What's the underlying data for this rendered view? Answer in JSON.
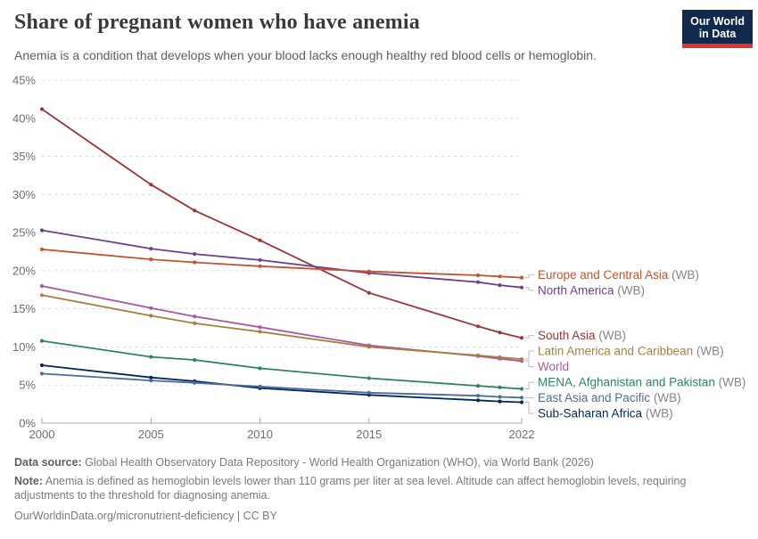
{
  "header": {
    "title": "Share of pregnant women who have anemia",
    "subtitle": "Anemia is a condition that develops when your blood lacks enough healthy red blood cells or hemoglobin.",
    "logo": {
      "line1": "Our World",
      "line2": "in Data",
      "bg_color": "#12294E",
      "accent_color": "#E0332C"
    }
  },
  "chart_data": {
    "type": "line",
    "title": "Share of pregnant women who have anemia",
    "x": [
      2000,
      2005,
      2007,
      2010,
      2015,
      2020,
      2021,
      2022
    ],
    "x_ticks": [
      2000,
      2005,
      2010,
      2015,
      2022
    ],
    "xlim": [
      2000,
      2022
    ],
    "y_ticks": [
      0,
      5,
      10,
      15,
      20,
      25,
      30,
      35,
      40,
      45
    ],
    "ylim": [
      0,
      45
    ],
    "y_suffix": "%",
    "grid": true,
    "legend_position": "right",
    "series": [
      {
        "name": "South Asia",
        "suffix": " (WB)",
        "color": "#9B3434",
        "values": [
          41.2,
          31.3,
          27.9,
          24.0,
          17.1,
          12.7,
          11.9,
          11.2
        ]
      },
      {
        "name": "North America",
        "suffix": " (WB)",
        "color": "#6D3E91",
        "values": [
          25.3,
          22.9,
          22.2,
          21.4,
          19.7,
          18.5,
          18.1,
          17.8
        ]
      },
      {
        "name": "Europe and Central Asia",
        "suffix": " (WB)",
        "color": "#C4522B",
        "values": [
          22.8,
          21.5,
          21.1,
          20.6,
          19.9,
          19.4,
          19.25,
          19.1
        ]
      },
      {
        "name": "World",
        "suffix": "",
        "color": "#A9599F",
        "values": [
          18.0,
          15.1,
          14.0,
          12.6,
          10.2,
          8.8,
          8.45,
          8.15
        ]
      },
      {
        "name": "Latin America and Caribbean",
        "suffix": " (WB)",
        "color": "#A87E3C",
        "values": [
          16.8,
          14.1,
          13.1,
          12.0,
          10.0,
          8.9,
          8.65,
          8.4
        ]
      },
      {
        "name": "MENA, Afghanistan and Pakistan",
        "suffix": " (WB)",
        "color": "#2C8465",
        "values": [
          10.8,
          8.7,
          8.3,
          7.2,
          5.9,
          4.9,
          4.7,
          4.5
        ]
      },
      {
        "name": "Sub-Saharan Africa",
        "suffix": " (WB)",
        "color": "#00295B",
        "values": [
          7.6,
          6.0,
          5.5,
          4.6,
          3.7,
          3.0,
          2.85,
          2.75
        ]
      },
      {
        "name": "East Asia and Pacific",
        "suffix": " (WB)",
        "color": "#4C6A9C",
        "values": [
          6.5,
          5.6,
          5.3,
          4.8,
          4.0,
          3.6,
          3.45,
          3.35
        ]
      }
    ]
  },
  "footer": {
    "source_label": "Data source:",
    "source_text": " Global Health Observatory Data Repository - World Health Organization (WHO), via World Bank (2026)",
    "note_label": "Note:",
    "note_text": " Anemia is defined as hemoglobin levels lower than 110 grams per liter at sea level. Altitude can affect hemoglobin levels, requiring adjustments to the threshold for diagnosing anemia.",
    "url_text": "OurWorldinData.org/micronutrient-deficiency | CC BY"
  }
}
